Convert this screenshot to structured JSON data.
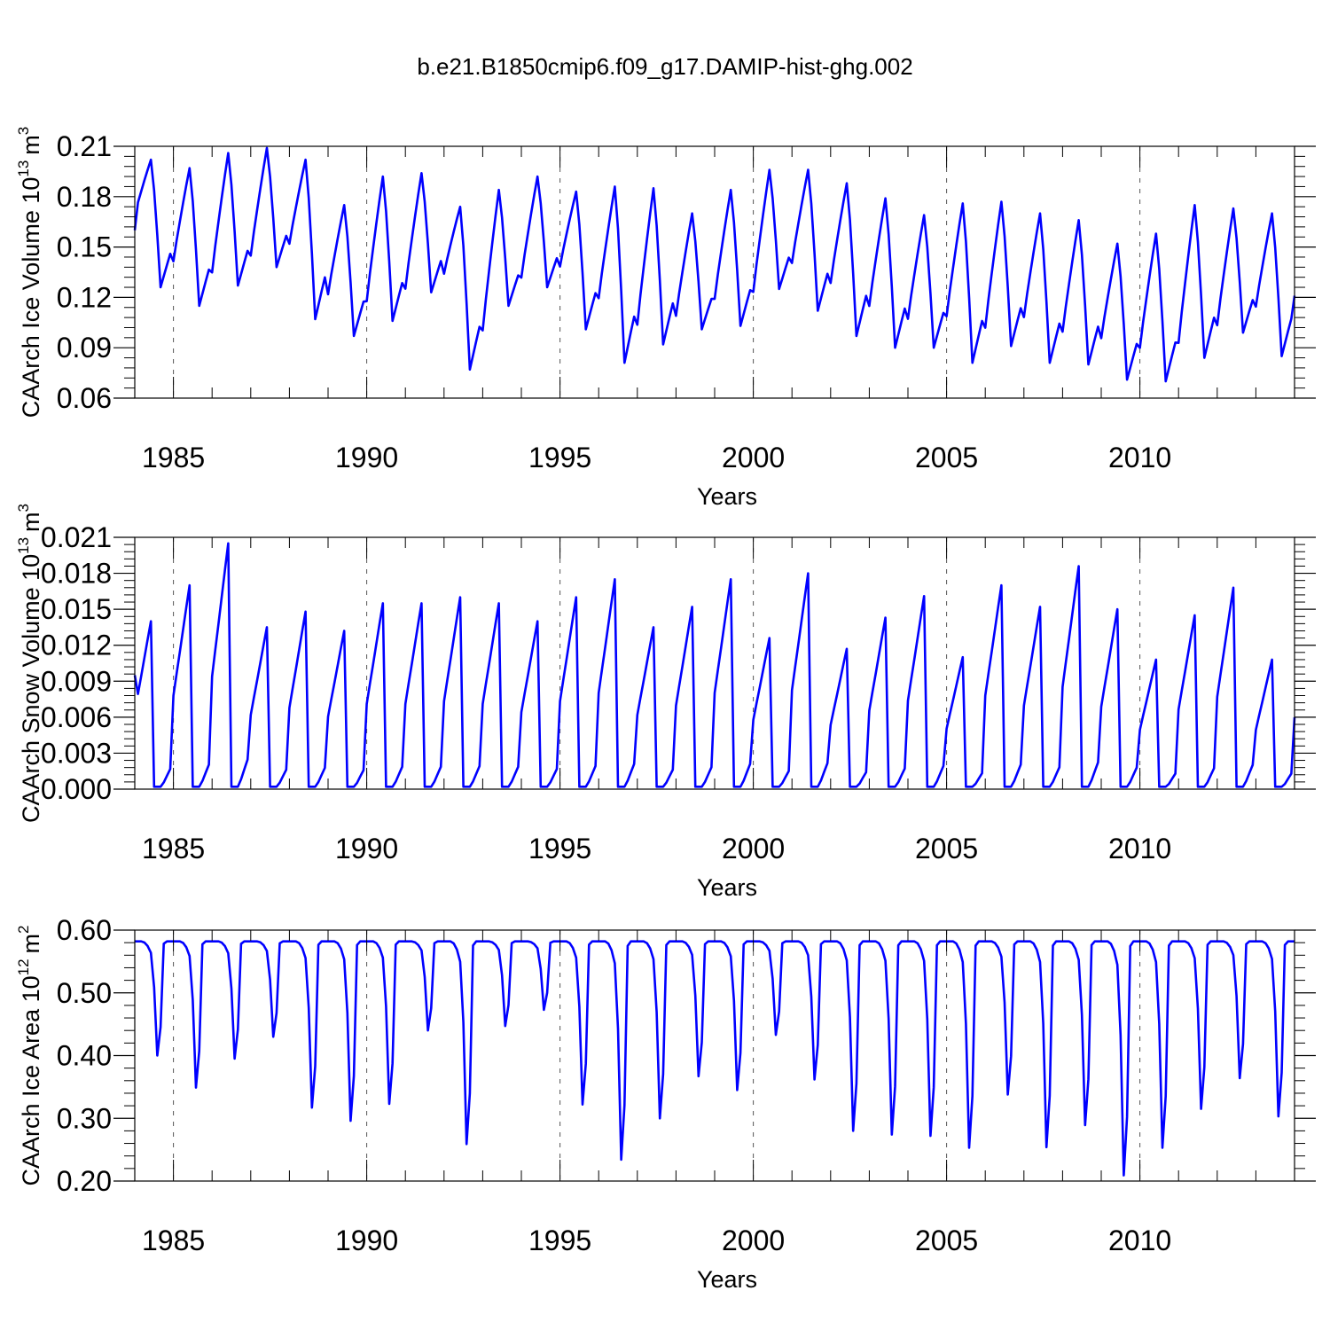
{
  "title": "b.e21.B1850cmip6.f09_g17.DAMIP-hist-ghg.002",
  "line_color": "#0000ff",
  "chart_data": [
    {
      "type": "line",
      "ylabel": "CAArch Ice Volume 10",
      "ylabel_exp": "13",
      "ylabel_unit": "m",
      "ylabel_unit_exp": "3",
      "xlabel": "Years",
      "xlim": [
        1984.0,
        2014.0
      ],
      "ylim": [
        0.06,
        0.21
      ],
      "yticks": [
        "0.06",
        "0.09",
        "0.12",
        "0.15",
        "0.18",
        "0.21"
      ],
      "xticks": [
        "1985",
        "1990",
        "1995",
        "2000",
        "2005",
        "2010"
      ],
      "kind": "ice",
      "annual_min": [
        0.126,
        0.115,
        0.127,
        0.138,
        0.107,
        0.097,
        0.106,
        0.123,
        0.077,
        0.115,
        0.126,
        0.101,
        0.081,
        0.092,
        0.101,
        0.103,
        0.125,
        0.112,
        0.097,
        0.09,
        0.09,
        0.081,
        0.091,
        0.081,
        0.08,
        0.071,
        0.07,
        0.084,
        0.099,
        0.085
      ],
      "annual_max": [
        0.202,
        0.197,
        0.206,
        0.209,
        0.202,
        0.175,
        0.192,
        0.194,
        0.174,
        0.184,
        0.192,
        0.183,
        0.186,
        0.185,
        0.17,
        0.184,
        0.196,
        0.196,
        0.188,
        0.179,
        0.169,
        0.176,
        0.177,
        0.17,
        0.166,
        0.152,
        0.158,
        0.175,
        0.173,
        0.17
      ],
      "start_value": 0.16,
      "end_value": 0.121
    },
    {
      "type": "line",
      "ylabel": "CAArch Snow Volume 10",
      "ylabel_exp": "13",
      "ylabel_unit": "m",
      "ylabel_unit_exp": "3",
      "xlabel": "Years",
      "xlim": [
        1984.0,
        2014.0
      ],
      "ylim": [
        0.0,
        0.021
      ],
      "yticks": [
        "0.000",
        "0.003",
        "0.006",
        "0.009",
        "0.012",
        "0.015",
        "0.018",
        "0.021"
      ],
      "xticks": [
        "1985",
        "1990",
        "1995",
        "2000",
        "2005",
        "2010"
      ],
      "kind": "snow",
      "annual_max": [
        0.014,
        0.017,
        0.0205,
        0.0135,
        0.0148,
        0.0132,
        0.0155,
        0.0155,
        0.016,
        0.0155,
        0.014,
        0.016,
        0.0175,
        0.0135,
        0.0152,
        0.0175,
        0.0126,
        0.018,
        0.0117,
        0.0143,
        0.0161,
        0.011,
        0.017,
        0.0152,
        0.0186,
        0.015,
        0.0108,
        0.0145,
        0.0168,
        0.0108
      ],
      "start_value": 0.0095,
      "end_value": 0.006
    },
    {
      "type": "line",
      "ylabel": "CAArch Ice Area 10",
      "ylabel_exp": "12",
      "ylabel_unit": "m",
      "ylabel_unit_exp": "2",
      "xlabel": "Years",
      "xlim": [
        1984.0,
        2014.0
      ],
      "ylim": [
        0.2,
        0.6
      ],
      "yticks": [
        "0.20",
        "0.30",
        "0.40",
        "0.50",
        "0.60"
      ],
      "xticks": [
        "1985",
        "1990",
        "1995",
        "2000",
        "2005",
        "2010"
      ],
      "kind": "area",
      "annual_min": [
        0.4,
        0.349,
        0.395,
        0.43,
        0.317,
        0.296,
        0.323,
        0.44,
        0.259,
        0.447,
        0.473,
        0.322,
        0.234,
        0.3,
        0.367,
        0.345,
        0.433,
        0.362,
        0.28,
        0.274,
        0.272,
        0.253,
        0.338,
        0.254,
        0.289,
        0.209,
        0.253,
        0.315,
        0.364,
        0.303
      ],
      "plateau": 0.582,
      "start_value": 0.582,
      "end_value": 0.582
    }
  ]
}
